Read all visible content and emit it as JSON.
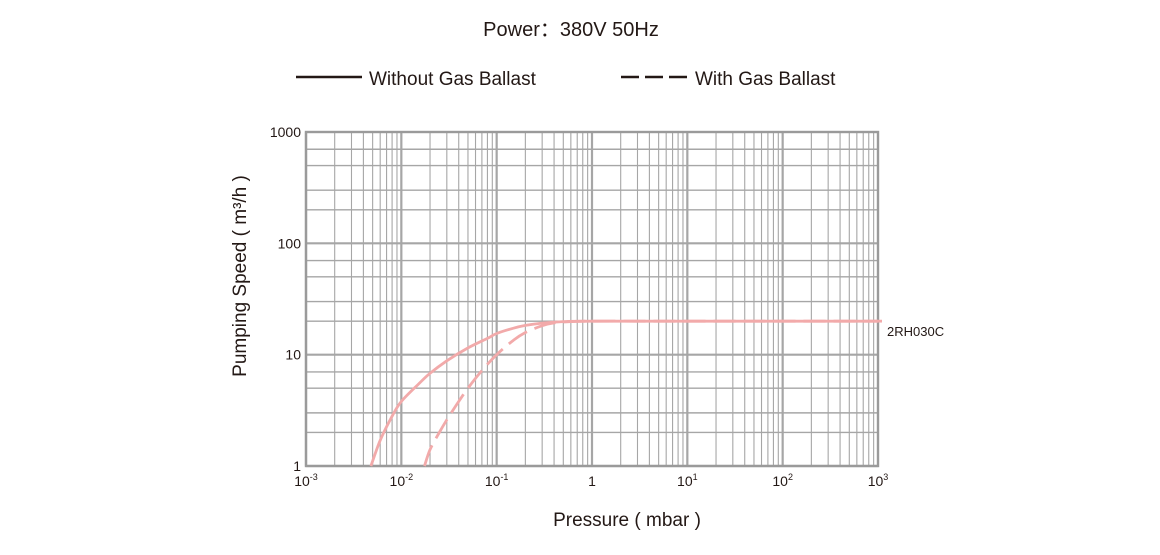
{
  "chart_data": {
    "type": "line",
    "title": "Power：380V 50Hz",
    "xlabel": "Pressure ( mbar )",
    "ylabel": "Pumping Speed ( m³/h )",
    "x_scale": "log",
    "y_scale": "log",
    "xlim": [
      0.001,
      1000
    ],
    "ylim": [
      1,
      1000
    ],
    "grid": true,
    "legend_position": "top",
    "x_ticks": [
      {
        "value": 0.001,
        "base": "10",
        "exp": "-3"
      },
      {
        "value": 0.01,
        "base": "10",
        "exp": "-2"
      },
      {
        "value": 0.1,
        "base": "10",
        "exp": "-1"
      },
      {
        "value": 1,
        "base": "1",
        "exp": ""
      },
      {
        "value": 10,
        "base": "10",
        "exp": "1"
      },
      {
        "value": 100,
        "base": "10",
        "exp": "2"
      },
      {
        "value": 1000,
        "base": "10",
        "exp": "3"
      }
    ],
    "y_ticks": [
      {
        "value": 1,
        "label": "1"
      },
      {
        "value": 10,
        "label": "10"
      },
      {
        "value": 100,
        "label": "100"
      },
      {
        "value": 1000,
        "label": "1000"
      }
    ],
    "legend": [
      {
        "label": "Without Gas Ballast",
        "style": "solid"
      },
      {
        "label": "With Gas Ballast",
        "style": "dashed"
      }
    ],
    "series": [
      {
        "name": "Without Gas Ballast",
        "style": "solid",
        "color": "#f2aaaa",
        "x": [
          0.0048,
          0.006,
          0.008,
          0.01,
          0.015,
          0.02,
          0.03,
          0.05,
          0.08,
          0.1,
          0.15,
          0.2,
          0.3,
          0.5,
          1,
          10,
          100,
          1000
        ],
        "y": [
          1,
          1.7,
          2.8,
          3.8,
          5.4,
          6.8,
          8.8,
          11.5,
          14,
          15.5,
          17.3,
          18.3,
          19.2,
          19.8,
          20,
          20,
          20,
          20
        ]
      },
      {
        "name": "With Gas Ballast",
        "style": "dashed",
        "color": "#f2aaaa",
        "x": [
          0.0175,
          0.02,
          0.025,
          0.03,
          0.04,
          0.05,
          0.07,
          0.1,
          0.15,
          0.2,
          0.3,
          0.4,
          0.6,
          1,
          10,
          100,
          1000
        ],
        "y": [
          1,
          1.4,
          2.0,
          2.6,
          3.8,
          5.0,
          7.2,
          10.0,
          13.5,
          15.8,
          18.2,
          19.3,
          19.8,
          20,
          20,
          20,
          20
        ]
      }
    ],
    "annotations": [
      {
        "text": "2RH030C",
        "x": 1000,
        "y": 20
      }
    ],
    "colors": {
      "grid": "#a6a6a6",
      "axis": "#9a9a9a",
      "text": "#231815",
      "legend_line": "#231815",
      "series": "#f2aaaa"
    }
  }
}
